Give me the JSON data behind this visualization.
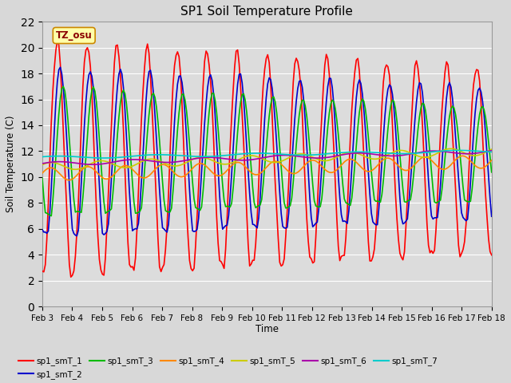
{
  "title": "SP1 Soil Temperature Profile",
  "xlabel": "Time",
  "ylabel": "Soil Temperature (C)",
  "xlim": [
    0,
    15
  ],
  "ylim": [
    0,
    22
  ],
  "yticks": [
    0,
    2,
    4,
    6,
    8,
    10,
    12,
    14,
    16,
    18,
    20,
    22
  ],
  "xtick_labels": [
    "Feb 3",
    "Feb 4",
    "Feb 5",
    "Feb 6",
    "Feb 7",
    "Feb 8",
    "Feb 9",
    "Feb 10",
    "Feb 11",
    "Feb 12",
    "Feb 13",
    "Feb 14",
    "Feb 15",
    "Feb 16",
    "Feb 17",
    "Feb 18"
  ],
  "annotation_text": "TZ_osu",
  "annotation_color": "#8b0000",
  "annotation_bg": "#ffffaa",
  "annotation_border": "#cc8800",
  "series_colors": [
    "#ff0000",
    "#0000cc",
    "#00bb00",
    "#ff8800",
    "#cccc00",
    "#aa00aa",
    "#00cccc"
  ],
  "series_labels": [
    "sp1_smT_1",
    "sp1_smT_2",
    "sp1_smT_3",
    "sp1_smT_4",
    "sp1_smT_5",
    "sp1_smT_6",
    "sp1_smT_7"
  ],
  "bg_color": "#dcdcdc",
  "grid_color": "#ffffff",
  "fig_bg": "#d8d8d8",
  "linewidth": 1.2
}
